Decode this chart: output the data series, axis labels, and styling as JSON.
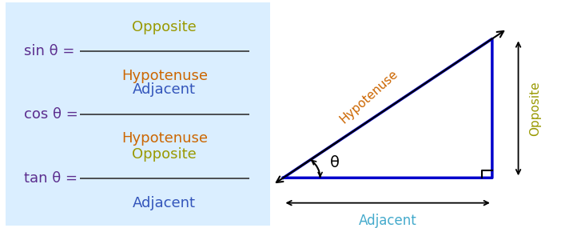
{
  "bg_box_color": "#daeeff",
  "trig_purple": "#5B2D8E",
  "trig_olive": "#999900",
  "trig_orange": "#CC6600",
  "trig_blue_frac": "#3355BB",
  "triangle_color": "#0000CC",
  "hyp_color": "#CC6600",
  "opp_color": "#999900",
  "adj_color": "#44AACC",
  "formulas": [
    {
      "lhs": "sin θ =",
      "num": "Opposite",
      "den": "Hypotenuse",
      "num_color": "#999900",
      "den_color": "#CC6600"
    },
    {
      "lhs": "cos θ =",
      "num": "Adjacent",
      "den": "Hypotenuse",
      "num_color": "#3355BB",
      "den_color": "#CC6600"
    },
    {
      "lhs": "tan θ =",
      "num": "Opposite",
      "den": "Adjacent",
      "num_color": "#999900",
      "den_color": "#3355BB"
    }
  ]
}
